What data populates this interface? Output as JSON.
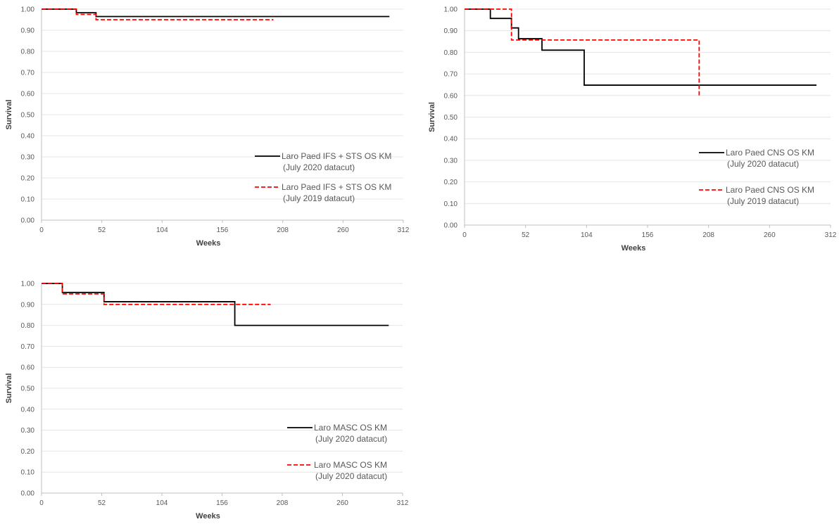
{
  "chart_data": [
    {
      "type": "line",
      "xlabel": "Weeks",
      "ylabel": "Survival",
      "xlim": [
        0,
        312
      ],
      "ylim": [
        0,
        1
      ],
      "xticks": [
        0,
        52,
        104,
        156,
        208,
        260,
        312
      ],
      "xtick_labels": [
        "0",
        "52",
        "104",
        "156",
        "208",
        "260",
        "312"
      ],
      "yticks": [
        0,
        0.1,
        0.2,
        0.3,
        0.4,
        0.5,
        0.6,
        0.7,
        0.8,
        0.9,
        1.0
      ],
      "ytick_labels": [
        "0.00",
        "0.10",
        "0.20",
        "0.30",
        "0.40",
        "0.50",
        "0.60",
        "0.70",
        "0.80",
        "0.90",
        "1.00"
      ],
      "grid": true,
      "legend_position": "bottom-right",
      "series": [
        {
          "name_lines": [
            "Laro Paed IFS + STS OS KM",
            "(July 2020 datacut)"
          ],
          "color": "#000000",
          "style": "solid",
          "step": true,
          "x": [
            0,
            30,
            47,
            300
          ],
          "y": [
            1.0,
            0.983,
            0.965,
            0.965
          ]
        },
        {
          "name_lines": [
            "Laro Paed IFS + STS OS KM",
            "(July 2019 datacut)"
          ],
          "color": "#ff0000",
          "style": "dashed",
          "step": true,
          "x": [
            0,
            30,
            47,
            200
          ],
          "y": [
            1.0,
            0.975,
            0.95,
            0.95
          ]
        }
      ]
    },
    {
      "type": "line",
      "xlabel": "Weeks",
      "ylabel": "Survival",
      "xlim": [
        0,
        312
      ],
      "ylim": [
        0,
        1
      ],
      "xticks": [
        0,
        52,
        104,
        156,
        208,
        260,
        312
      ],
      "xtick_labels": [
        "0",
        "52",
        "104",
        "156",
        "208",
        "260",
        "312"
      ],
      "yticks": [
        0,
        0.1,
        0.2,
        0.3,
        0.4,
        0.5,
        0.6,
        0.7,
        0.8,
        0.9,
        1.0
      ],
      "ytick_labels": [
        "0.00",
        "0.10",
        "0.20",
        "0.30",
        "0.40",
        "0.50",
        "0.60",
        "0.70",
        "0.80",
        "0.90",
        "1.00"
      ],
      "grid": true,
      "legend_position": "bottom-right",
      "series": [
        {
          "name_lines": [
            "Laro Paed CNS OS KM",
            "(July 2020 datacut)"
          ],
          "color": "#000000",
          "style": "solid",
          "step": true,
          "x": [
            0,
            22,
            40,
            46,
            66,
            102,
            300
          ],
          "y": [
            1.0,
            0.957,
            0.913,
            0.863,
            0.81,
            0.648,
            0.648
          ]
        },
        {
          "name_lines": [
            "Laro Paed CNS OS KM",
            "(July 2019 datacut)"
          ],
          "color": "#ff0000",
          "style": "dashed",
          "step": true,
          "x": [
            0,
            40,
            200,
            200
          ],
          "y": [
            1.0,
            0.857,
            0.6,
            0.6
          ]
        }
      ]
    },
    {
      "type": "line",
      "xlabel": "Weeks",
      "ylabel": "Survival",
      "xlim": [
        0,
        312
      ],
      "ylim": [
        0,
        1
      ],
      "xticks": [
        0,
        52,
        104,
        156,
        208,
        260,
        312
      ],
      "xtick_labels": [
        "0",
        "52",
        "104",
        "156",
        "208",
        "260",
        "312"
      ],
      "yticks": [
        0,
        0.1,
        0.2,
        0.3,
        0.4,
        0.5,
        0.6,
        0.7,
        0.8,
        0.9,
        1.0
      ],
      "ytick_labels": [
        "0.00",
        "0.10",
        "0.20",
        "0.30",
        "0.40",
        "0.50",
        "0.60",
        "0.70",
        "0.80",
        "0.90",
        "1.00"
      ],
      "grid": true,
      "legend_position": "bottom-right",
      "series": [
        {
          "name_lines": [
            "Laro MASC OS KM",
            "(July 2020 datacut)"
          ],
          "color": "#000000",
          "style": "solid",
          "step": true,
          "x": [
            0,
            18,
            54,
            167,
            300
          ],
          "y": [
            1.0,
            0.957,
            0.913,
            0.8,
            0.8
          ]
        },
        {
          "name_lines": [
            "Laro MASC OS KM",
            "(July 2020 datacut)"
          ],
          "color": "#ff0000",
          "style": "dashed",
          "step": true,
          "x": [
            0,
            18,
            54,
            198
          ],
          "y": [
            1.0,
            0.95,
            0.9,
            0.9
          ]
        }
      ]
    }
  ]
}
